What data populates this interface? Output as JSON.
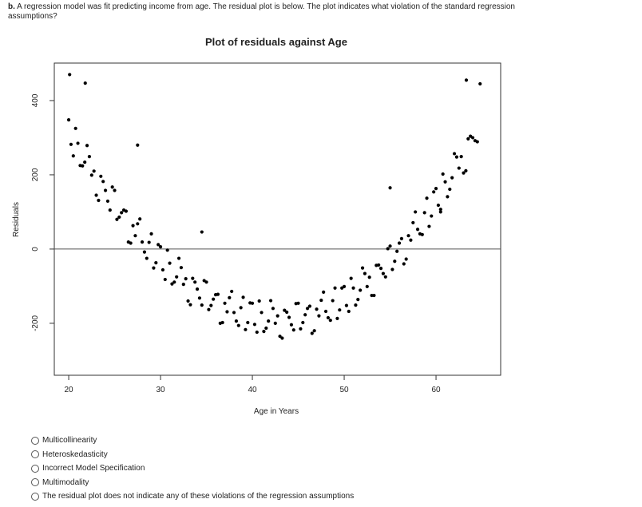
{
  "question_label": "b.",
  "question": "A regression model was fit predicting income from age.  The residual plot is below.  The plot indicates what violation of the standard regression assumptions?",
  "chart_data": {
    "type": "scatter",
    "title": "Plot of residuals against Age",
    "xlabel": "Age in Years",
    "ylabel": "Residuals",
    "xlim": [
      18.43,
      67.04
    ],
    "ylim": [
      -340,
      501
    ],
    "xticks": [
      20,
      30,
      40,
      50,
      60
    ],
    "yticks": [
      -200,
      0,
      200,
      400
    ],
    "hline": 0,
    "color": "#000000",
    "x": [
      20,
      20.5,
      21,
      21.5,
      22,
      22.5,
      23,
      23.5,
      24,
      24.5,
      25,
      25.5,
      26,
      26.5,
      27,
      27.5,
      28,
      28.5,
      29,
      29.5,
      30,
      30.5,
      31,
      31.5,
      32,
      32.5,
      33,
      33.5,
      34,
      34.5,
      35,
      35.5,
      36,
      36.5,
      37,
      37.5,
      38,
      38.5,
      39,
      39.5,
      40,
      40.5,
      41,
      41.5,
      42,
      42.5,
      43,
      43.5,
      44,
      44.5,
      45,
      45.5,
      46,
      46.5,
      47,
      47.5,
      48,
      48.5,
      49,
      49.5,
      50,
      50.5,
      51,
      51.5,
      52,
      52.5,
      53,
      53.5,
      54,
      54.5,
      55,
      55.5,
      56,
      56.5,
      57,
      57.5,
      58,
      58.5,
      59,
      59.5,
      60,
      60.5,
      61,
      61.5,
      62,
      62.5,
      63,
      63.5,
      64,
      64.5,
      20.25,
      20.75,
      21.25,
      21.75,
      22.25,
      22.75,
      23.25,
      23.75,
      24.25,
      24.75,
      25.25,
      25.75,
      26.25,
      26.75,
      27.25,
      27.75,
      28.25,
      28.75,
      29.25,
      29.75,
      30.25,
      30.75,
      31.25,
      31.75,
      32.25,
      32.75,
      33.25,
      33.75,
      34.25,
      34.75,
      35.25,
      35.75,
      36.25,
      36.75,
      37.25,
      37.75,
      38.25,
      38.75,
      39.25,
      39.75,
      40.25,
      40.75,
      41.25,
      41.75,
      42.25,
      42.75,
      43.25,
      43.75,
      44.25,
      44.75,
      45.25,
      45.75,
      46.25,
      46.75,
      47.25,
      47.75,
      48.25,
      48.75,
      49.25,
      49.75,
      50.25,
      50.75,
      51.25,
      51.75,
      52.25,
      52.75,
      53.25,
      53.75,
      54.25,
      54.75,
      55.25,
      55.75,
      56.25,
      56.75,
      57.25,
      57.75,
      58.25,
      58.75,
      59.25,
      59.75,
      60.25,
      60.75,
      61.25,
      61.75,
      62.25,
      62.75,
      63.25,
      63.75,
      64.25,
      20.1,
      21.8,
      27.5,
      63.3,
      64.8,
      34.5,
      55,
      60.5
    ],
    "y": [
      348,
      251,
      285,
      224,
      279,
      199,
      145,
      196,
      158,
      105,
      158,
      86,
      105,
      19,
      63,
      68,
      19,
      -25,
      41,
      -37,
      6,
      -82,
      -38,
      -89,
      -25,
      -95,
      -140,
      -79,
      -108,
      -151,
      -89,
      -152,
      -123,
      -200,
      -146,
      -131,
      -171,
      -206,
      -130,
      -198,
      -146,
      -224,
      -171,
      -213,
      -139,
      -200,
      -235,
      -165,
      -184,
      -218,
      -146,
      -198,
      -160,
      -227,
      -162,
      -138,
      -168,
      -192,
      -105,
      -164,
      -101,
      -168,
      -105,
      -136,
      -51,
      -101,
      -125,
      -44,
      -52,
      -75,
      8,
      -33,
      16,
      -40,
      36,
      71,
      53,
      39,
      137,
      89,
      163,
      107,
      181,
      161,
      257,
      218,
      205,
      297,
      300,
      289,
      282,
      325,
      225,
      234,
      249,
      210,
      131,
      182,
      129,
      167,
      80,
      98,
      102,
      16,
      36,
      81,
      -8,
      18,
      -51,
      12,
      -56,
      -3,
      -94,
      -75,
      -50,
      -80,
      -150,
      -89,
      -132,
      -85,
      -163,
      -135,
      -122,
      -198,
      -169,
      -114,
      -194,
      -158,
      -217,
      -145,
      -203,
      -140,
      -222,
      -194,
      -160,
      -180,
      -240,
      -170,
      -204,
      -147,
      -215,
      -177,
      -154,
      -220,
      -180,
      -116,
      -185,
      -139,
      -187,
      -105,
      -152,
      -79,
      -151,
      -111,
      -66,
      -76,
      -125,
      -43,
      -66,
      1,
      -55,
      -6,
      28,
      -27,
      24,
      100,
      41,
      98,
      61,
      154,
      118,
      202,
      141,
      192,
      248,
      249,
      211,
      304,
      292,
      470,
      447,
      280,
      455,
      445,
      46,
      165,
      100
    ]
  },
  "options": [
    "Multicollinearity",
    "Heteroskedasticity",
    "Incorrect Model Specification",
    "Multimodality",
    "The residual plot does not indicate any of these violations of the regression assumptions"
  ]
}
